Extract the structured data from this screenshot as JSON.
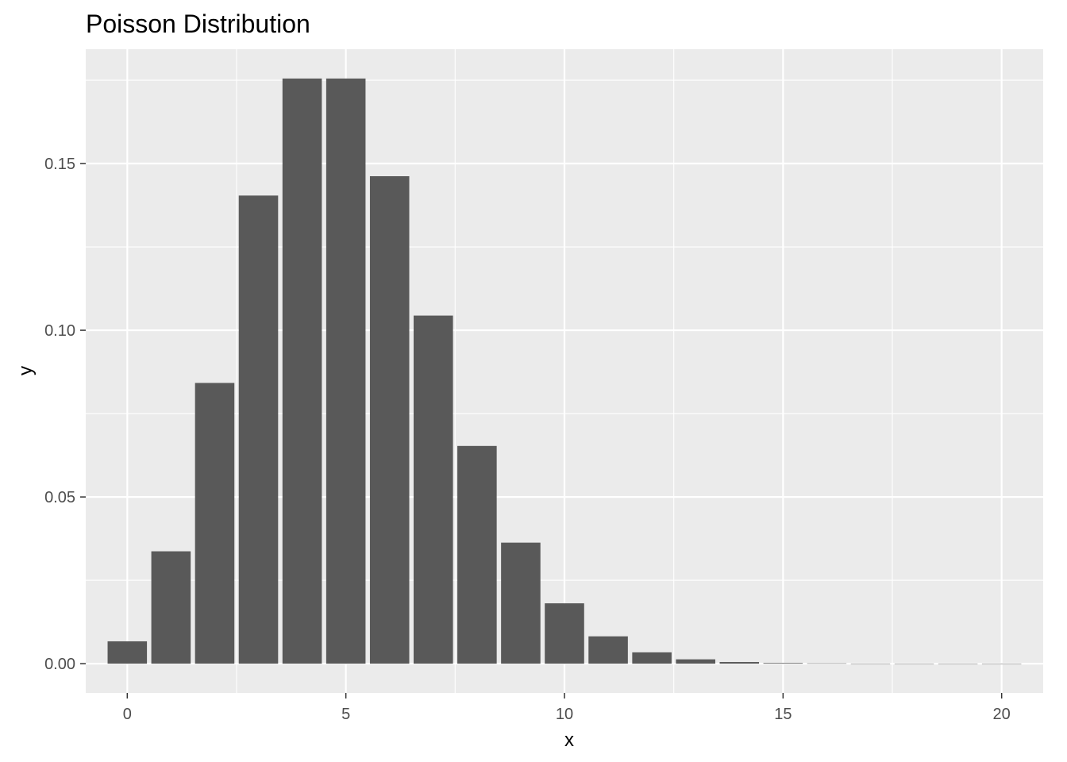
{
  "chart_data": {
    "type": "bar",
    "title": "Poisson Distribution",
    "xlabel": "x",
    "ylabel": "y",
    "x": [
      0,
      1,
      2,
      3,
      4,
      5,
      6,
      7,
      8,
      9,
      10,
      11,
      12,
      13,
      14,
      15,
      16,
      17,
      18,
      19,
      20
    ],
    "values": [
      0.0067,
      0.0337,
      0.0842,
      0.1404,
      0.1755,
      0.1755,
      0.1462,
      0.1044,
      0.0653,
      0.0363,
      0.0181,
      0.0082,
      0.0034,
      0.0013,
      0.0005,
      0.0002,
      0.0001,
      2e-05,
      1e-05,
      2e-06,
      5e-07
    ],
    "xlim": [
      -0.95,
      20.95
    ],
    "ylim": [
      -0.00878,
      0.18429
    ],
    "x_ticks": [
      0,
      5,
      10,
      15,
      20
    ],
    "x_tick_labels": [
      "0",
      "5",
      "10",
      "15",
      "20"
    ],
    "y_ticks": [
      0,
      0.05,
      0.1,
      0.15
    ],
    "y_tick_labels": [
      "0.00",
      "0.05",
      "0.10",
      "0.15"
    ],
    "grid": true,
    "colors": {
      "panel_background": "#EBEBEB",
      "grid_major": "#FFFFFF",
      "bar_fill": "#595959",
      "tick_label": "#4D4D4D",
      "axis_tick": "#333333"
    }
  }
}
